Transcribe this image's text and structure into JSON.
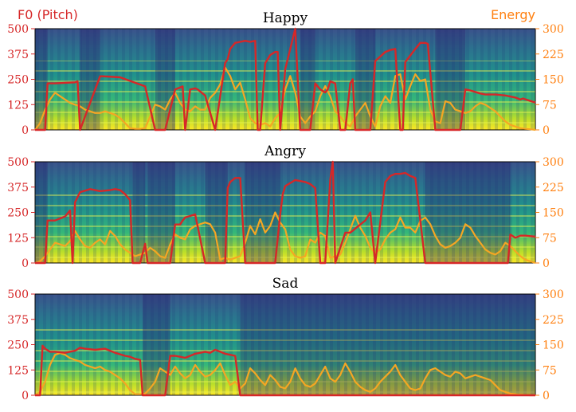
{
  "chart_data": {
    "type": "line",
    "left_axis_label": "F0 (Pitch)",
    "right_axis_label": "Energy",
    "left_color": "#d62728",
    "right_color": "#f5a623",
    "left_ylim": [
      0,
      500
    ],
    "right_ylim": [
      0,
      300
    ],
    "left_ticks": [
      "500",
      "375",
      "250",
      "125",
      "0"
    ],
    "right_ticks": [
      "300",
      "225",
      "150",
      "75",
      "0"
    ],
    "x_range": [
      0,
      100
    ],
    "panels": [
      {
        "title": "Happy",
        "pitch": {
          "x": [
            0,
            2,
            2.5,
            4,
            8,
            8.5,
            9,
            13,
            13.5,
            17,
            22,
            24,
            24.5,
            25.5,
            26,
            28,
            29,
            29.5,
            30,
            31,
            32,
            32.5,
            34,
            36,
            38,
            38.5,
            39,
            40,
            41,
            42,
            43,
            44,
            44.5,
            45,
            46,
            47,
            48,
            48.5,
            49,
            50,
            52,
            53,
            53.5,
            55,
            56,
            57,
            58,
            58.5,
            59,
            60,
            61,
            62,
            63,
            63.5,
            64,
            65,
            66,
            67,
            68,
            70,
            71,
            72,
            73,
            73.5,
            74,
            76,
            77,
            78,
            78.5,
            80,
            81,
            83,
            84,
            85,
            86,
            87,
            89,
            90,
            92,
            94,
            96,
            97,
            97.5,
            100
          ],
          "y": [
            0,
            0,
            230,
            230,
            235,
            240,
            0,
            265,
            265,
            260,
            215,
            0,
            0,
            0,
            0,
            200,
            210,
            215,
            0,
            200,
            205,
            200,
            170,
            0,
            330,
            350,
            400,
            430,
            435,
            440,
            435,
            440,
            0,
            0,
            330,
            370,
            385,
            385,
            0,
            300,
            500,
            0,
            0,
            0,
            230,
            200,
            185,
            200,
            240,
            230,
            0,
            0,
            230,
            250,
            0,
            0,
            0,
            0,
            340,
            385,
            395,
            400,
            0,
            0,
            335,
            400,
            430,
            430,
            425,
            0,
            0,
            0,
            0,
            0,
            200,
            195,
            180,
            175,
            175,
            170,
            160,
            150,
            155,
            135
          ]
        },
        "energy": {
          "x": [
            0,
            1,
            2,
            3,
            4,
            5,
            6,
            7,
            8,
            9,
            10,
            11,
            12,
            13,
            14,
            15,
            16,
            17,
            18,
            19,
            20,
            21,
            22,
            23,
            24,
            25,
            26,
            27,
            28,
            29,
            30,
            31,
            32,
            33,
            34,
            35,
            36,
            37,
            38,
            39,
            40,
            41,
            42,
            43,
            44,
            45,
            46,
            47,
            48,
            49,
            50,
            51,
            52,
            53,
            54,
            55,
            56,
            57,
            58,
            59,
            60,
            61,
            62,
            63,
            64,
            65,
            66,
            67,
            68,
            69,
            70,
            71,
            72,
            73,
            74,
            75,
            76,
            77,
            78,
            79,
            80,
            81,
            82,
            83,
            84,
            85,
            86,
            87,
            88,
            89,
            90,
            91,
            92,
            93,
            94,
            95,
            96,
            97,
            98,
            99,
            100
          ],
          "y": [
            0,
            20,
            60,
            90,
            110,
            100,
            90,
            80,
            75,
            70,
            60,
            55,
            50,
            50,
            55,
            50,
            45,
            35,
            20,
            5,
            3,
            3,
            5,
            40,
            75,
            70,
            60,
            90,
            110,
            80,
            60,
            55,
            70,
            60,
            60,
            95,
            110,
            135,
            185,
            160,
            120,
            140,
            90,
            35,
            20,
            15,
            20,
            10,
            35,
            50,
            120,
            160,
            110,
            40,
            20,
            40,
            55,
            100,
            130,
            100,
            55,
            40,
            20,
            10,
            40,
            60,
            80,
            40,
            10,
            70,
            100,
            80,
            160,
            165,
            90,
            130,
            165,
            145,
            150,
            60,
            25,
            20,
            85,
            80,
            60,
            55,
            50,
            55,
            70,
            80,
            75,
            65,
            55,
            40,
            25,
            15,
            10,
            5,
            3,
            2,
            0
          ]
        }
      },
      {
        "title": "Angry",
        "pitch": {
          "x": [
            0,
            2,
            2.5,
            4,
            6,
            7,
            7.5,
            8,
            9,
            11,
            13,
            15,
            16,
            17,
            18,
            19,
            19.5,
            20,
            21,
            22,
            22.5,
            23,
            24,
            26,
            27,
            28,
            29,
            29.5,
            30,
            32,
            34,
            35,
            36,
            37,
            38,
            38.5,
            39,
            40,
            41,
            42,
            43,
            44,
            44.5,
            45,
            46,
            47,
            48,
            49,
            49.5,
            50,
            52,
            54,
            55,
            56,
            57,
            58,
            59,
            59.5,
            60,
            62,
            63,
            63.5,
            64,
            66,
            67,
            68,
            70,
            71,
            72,
            73,
            74,
            75,
            76,
            78,
            79,
            80,
            81,
            82,
            83,
            84,
            86,
            87,
            88,
            89,
            90,
            91,
            92,
            93,
            94,
            94.5,
            95,
            96,
            97,
            98,
            100
          ],
          "y": [
            0,
            0,
            210,
            210,
            230,
            260,
            0,
            300,
            350,
            365,
            355,
            360,
            365,
            360,
            340,
            310,
            0,
            0,
            0,
            95,
            0,
            0,
            0,
            0,
            0,
            190,
            190,
            210,
            225,
            240,
            0,
            0,
            0,
            0,
            0,
            370,
            400,
            420,
            420,
            0,
            0,
            0,
            0,
            0,
            0,
            0,
            0,
            240,
            340,
            380,
            410,
            400,
            390,
            370,
            0,
            0,
            410,
            500,
            0,
            150,
            150,
            160,
            170,
            210,
            250,
            0,
            400,
            430,
            440,
            440,
            445,
            430,
            420,
            0,
            0,
            0,
            0,
            0,
            0,
            0,
            0,
            0,
            0,
            0,
            0,
            0,
            0,
            0,
            0,
            0,
            140,
            125,
            135,
            135,
            130
          ]
        },
        "energy": {
          "x": [
            0,
            1,
            2,
            3,
            4,
            5,
            6,
            7,
            8,
            9,
            10,
            11,
            12,
            13,
            14,
            15,
            16,
            17,
            18,
            19,
            20,
            21,
            22,
            23,
            24,
            25,
            26,
            27,
            28,
            29,
            30,
            31,
            32,
            33,
            34,
            35,
            36,
            37,
            38,
            39,
            40,
            41,
            42,
            43,
            44,
            45,
            46,
            47,
            48,
            49,
            50,
            51,
            52,
            53,
            54,
            55,
            56,
            57,
            58,
            59,
            60,
            61,
            62,
            63,
            64,
            65,
            66,
            67,
            68,
            69,
            70,
            71,
            72,
            73,
            74,
            75,
            76,
            77,
            78,
            79,
            80,
            81,
            82,
            83,
            84,
            85,
            86,
            87,
            88,
            89,
            90,
            91,
            92,
            93,
            94,
            95,
            96,
            97,
            98,
            99,
            100
          ],
          "y": [
            0,
            5,
            20,
            40,
            60,
            55,
            50,
            65,
            95,
            70,
            50,
            45,
            60,
            70,
            55,
            95,
            80,
            55,
            40,
            30,
            20,
            25,
            30,
            45,
            35,
            20,
            15,
            55,
            85,
            75,
            70,
            100,
            110,
            115,
            120,
            115,
            90,
            10,
            15,
            10,
            15,
            20,
            60,
            110,
            85,
            130,
            90,
            110,
            150,
            120,
            100,
            40,
            20,
            15,
            20,
            70,
            60,
            90,
            80,
            15,
            20,
            25,
            60,
            100,
            140,
            105,
            80,
            45,
            30,
            40,
            70,
            90,
            100,
            135,
            105,
            105,
            90,
            125,
            135,
            115,
            80,
            55,
            45,
            50,
            60,
            75,
            115,
            105,
            80,
            60,
            40,
            30,
            25,
            35,
            60,
            50,
            35,
            20,
            10,
            5,
            0
          ]
        }
      },
      {
        "title": "Sad",
        "pitch": {
          "x": [
            0,
            1,
            1.5,
            2,
            3,
            4,
            6,
            8,
            9,
            10,
            12,
            14,
            16,
            18,
            19,
            20,
            21,
            21.5,
            22,
            23,
            24,
            25,
            26,
            27,
            28,
            29,
            30,
            31,
            32,
            33,
            34,
            35,
            36,
            37,
            38,
            39,
            40,
            41,
            42,
            43,
            44,
            45,
            46,
            47,
            48,
            49,
            50,
            51,
            52,
            53,
            54,
            55,
            56,
            57,
            58,
            59,
            60,
            61,
            62,
            63,
            64,
            65,
            66,
            67,
            68,
            69,
            70,
            71,
            72,
            73,
            74,
            75,
            76,
            77,
            78,
            79,
            80,
            81,
            82,
            83,
            84,
            85,
            86,
            87,
            88,
            89,
            90,
            91,
            92,
            93,
            94,
            95,
            96,
            97,
            98,
            99,
            100
          ],
          "y": [
            0,
            0,
            245,
            230,
            215,
            215,
            210,
            220,
            235,
            230,
            225,
            230,
            210,
            195,
            190,
            180,
            175,
            0,
            0,
            0,
            0,
            0,
            0,
            195,
            195,
            190,
            185,
            195,
            205,
            210,
            215,
            210,
            225,
            215,
            205,
            200,
            195,
            0,
            0,
            0,
            0,
            0,
            0,
            0,
            0,
            0,
            0,
            0,
            0,
            0,
            0,
            0,
            0,
            0,
            0,
            0,
            0,
            0,
            0,
            0,
            0,
            0,
            0,
            0,
            0,
            0,
            0,
            0,
            0,
            0,
            0,
            0,
            0,
            0,
            0,
            0,
            0,
            0,
            0,
            0,
            0,
            0,
            0,
            0,
            0,
            0,
            0,
            0,
            0,
            0,
            0,
            0,
            0,
            0,
            0,
            0,
            0
          ]
        },
        "energy": {
          "x": [
            0,
            1,
            2,
            3,
            4,
            5,
            6,
            7,
            8,
            9,
            10,
            11,
            12,
            13,
            14,
            15,
            16,
            17,
            18,
            19,
            20,
            21,
            22,
            23,
            24,
            25,
            26,
            27,
            28,
            29,
            30,
            31,
            32,
            33,
            34,
            35,
            36,
            37,
            38,
            39,
            40,
            41,
            42,
            43,
            44,
            45,
            46,
            47,
            48,
            49,
            50,
            51,
            52,
            53,
            54,
            55,
            56,
            57,
            58,
            59,
            60,
            61,
            62,
            63,
            64,
            65,
            66,
            67,
            68,
            69,
            70,
            71,
            72,
            73,
            74,
            75,
            76,
            77,
            78,
            79,
            80,
            81,
            82,
            83,
            84,
            85,
            86,
            87,
            88,
            89,
            90,
            91,
            92,
            93,
            94,
            95,
            96,
            97,
            98,
            99,
            100
          ],
          "y": [
            0,
            10,
            40,
            90,
            120,
            125,
            120,
            110,
            105,
            100,
            90,
            85,
            80,
            85,
            75,
            70,
            60,
            50,
            35,
            15,
            3,
            3,
            5,
            20,
            40,
            80,
            70,
            60,
            85,
            65,
            50,
            60,
            90,
            70,
            55,
            60,
            75,
            95,
            60,
            30,
            40,
            20,
            35,
            80,
            65,
            45,
            30,
            60,
            45,
            25,
            20,
            40,
            80,
            50,
            30,
            25,
            35,
            60,
            85,
            50,
            40,
            60,
            95,
            70,
            40,
            25,
            15,
            10,
            20,
            40,
            55,
            70,
            90,
            60,
            40,
            20,
            15,
            20,
            50,
            75,
            80,
            70,
            60,
            55,
            70,
            65,
            50,
            55,
            60,
            55,
            50,
            45,
            30,
            15,
            10,
            5,
            3,
            2,
            1,
            0,
            0
          ]
        }
      }
    ]
  }
}
